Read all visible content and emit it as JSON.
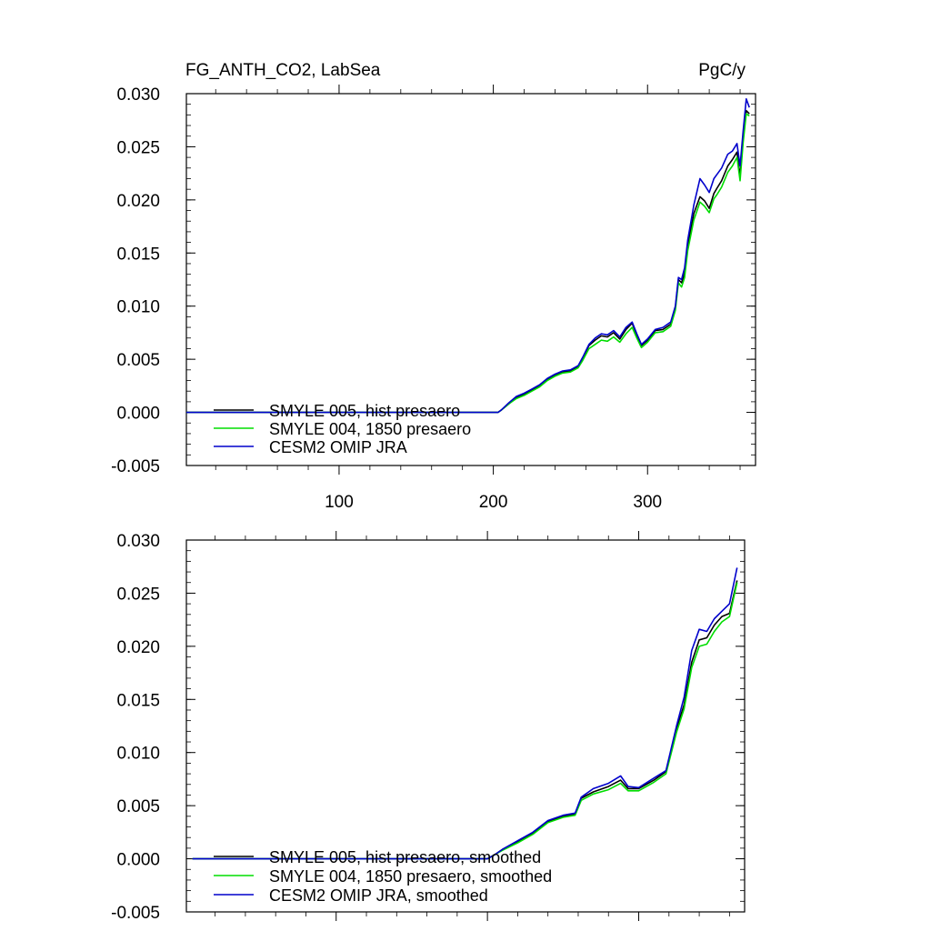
{
  "chart_data": [
    {
      "type": "line",
      "title": "FG_ANTH_CO2, LabSea",
      "units": "PgC/y",
      "xlim": [
        1,
        370
      ],
      "ylim": [
        -0.005,
        0.03
      ],
      "x_ticks": [
        100,
        200,
        300
      ],
      "x_tick_labels": [
        "100",
        "200",
        "300"
      ],
      "y_ticks": [
        -0.005,
        0.0,
        0.005,
        0.01,
        0.015,
        0.02,
        0.025,
        0.03
      ],
      "y_tick_labels": [
        "-0.005",
        "0.000",
        "0.005",
        "0.010",
        "0.015",
        "0.020",
        "0.025",
        "0.030"
      ],
      "legend_location": "bottom-left",
      "series": [
        {
          "name": "SMYLE 005, hist presaero",
          "color": "#000000",
          "x": [
            1,
            203,
            205,
            210,
            215,
            220,
            225,
            230,
            235,
            240,
            245,
            250,
            255,
            258,
            262,
            266,
            270,
            274,
            278,
            282,
            286,
            290,
            293,
            296,
            300,
            305,
            310,
            315,
            318,
            320,
            322,
            324,
            326,
            330,
            334,
            337,
            340,
            343,
            345,
            348,
            352,
            355,
            358,
            360,
            362,
            364,
            366
          ],
          "values": [
            0.0,
            0.0,
            0.0002,
            0.0008,
            0.0014,
            0.0017,
            0.0021,
            0.0025,
            0.0031,
            0.0035,
            0.0038,
            0.0039,
            0.0043,
            0.0051,
            0.0063,
            0.0068,
            0.0072,
            0.0071,
            0.0075,
            0.0069,
            0.0078,
            0.0084,
            0.0073,
            0.0063,
            0.0068,
            0.0077,
            0.0078,
            0.0083,
            0.0098,
            0.0125,
            0.0122,
            0.0131,
            0.0157,
            0.0187,
            0.0203,
            0.0199,
            0.0192,
            0.0206,
            0.0211,
            0.0218,
            0.0232,
            0.0238,
            0.0245,
            0.0222,
            0.0258,
            0.0284,
            0.0281
          ]
        },
        {
          "name": "SMYLE 004, 1850 presaero",
          "color": "#00dd00",
          "x": [
            1,
            203,
            205,
            210,
            215,
            220,
            225,
            230,
            235,
            240,
            245,
            250,
            255,
            258,
            262,
            266,
            270,
            274,
            278,
            282,
            286,
            290,
            293,
            296,
            300,
            305,
            310,
            315,
            318,
            320,
            322,
            324,
            326,
            330,
            334,
            337,
            340,
            343,
            345,
            348,
            352,
            355,
            358,
            360,
            362,
            364,
            366
          ],
          "values": [
            0.0,
            0.0,
            0.0002,
            0.0008,
            0.0013,
            0.0016,
            0.002,
            0.0024,
            0.003,
            0.0034,
            0.0037,
            0.0038,
            0.0042,
            0.0049,
            0.006,
            0.0064,
            0.0068,
            0.0067,
            0.0071,
            0.0066,
            0.0074,
            0.008,
            0.007,
            0.0061,
            0.0066,
            0.0075,
            0.0076,
            0.0081,
            0.0096,
            0.0122,
            0.0118,
            0.0127,
            0.0152,
            0.0181,
            0.0198,
            0.0194,
            0.0188,
            0.0201,
            0.0205,
            0.0212,
            0.0226,
            0.0232,
            0.024,
            0.0218,
            0.0254,
            0.0281,
            0.0279
          ]
        },
        {
          "name": "CESM2 OMIP JRA",
          "color": "#0000cc",
          "x": [
            1,
            203,
            205,
            210,
            215,
            220,
            225,
            230,
            235,
            240,
            245,
            250,
            255,
            258,
            262,
            266,
            270,
            274,
            278,
            282,
            286,
            290,
            293,
            296,
            300,
            305,
            310,
            315,
            318,
            320,
            322,
            324,
            326,
            330,
            334,
            337,
            340,
            343,
            345,
            348,
            352,
            355,
            358,
            360,
            362,
            364,
            366
          ],
          "values": [
            0.0,
            0.0,
            0.0002,
            0.0009,
            0.0015,
            0.0018,
            0.0022,
            0.0026,
            0.0032,
            0.0036,
            0.0039,
            0.004,
            0.0044,
            0.0052,
            0.0064,
            0.007,
            0.0074,
            0.0073,
            0.0077,
            0.0071,
            0.008,
            0.0085,
            0.0074,
            0.0064,
            0.0069,
            0.0078,
            0.008,
            0.0085,
            0.01,
            0.0127,
            0.0125,
            0.0136,
            0.0162,
            0.0195,
            0.022,
            0.0214,
            0.0207,
            0.022,
            0.0224,
            0.023,
            0.0243,
            0.0246,
            0.0253,
            0.0232,
            0.0265,
            0.0295,
            0.0287
          ]
        }
      ]
    },
    {
      "type": "line",
      "title": "",
      "units": "",
      "xlim": [
        1,
        370
      ],
      "ylim": [
        -0.005,
        0.03
      ],
      "x_ticks": [
        100,
        200,
        300
      ],
      "x_tick_labels": [
        "",
        "",
        ""
      ],
      "y_ticks": [
        -0.005,
        0.0,
        0.005,
        0.01,
        0.015,
        0.02,
        0.025,
        0.03
      ],
      "y_tick_labels": [
        "-0.005",
        "0.000",
        "0.005",
        "0.010",
        "0.015",
        "0.020",
        "0.025",
        "0.030"
      ],
      "legend_location": "bottom-left",
      "series": [
        {
          "name": "SMYLE 005, hist presaero, smoothed",
          "color": "#000000",
          "x": [
            5,
            200,
            205,
            210,
            220,
            230,
            240,
            250,
            258,
            262,
            270,
            280,
            288,
            293,
            300,
            310,
            318,
            325,
            330,
            335,
            340,
            345,
            350,
            355,
            360,
            365
          ],
          "values": [
            0.0,
            0.0,
            0.0004,
            0.0009,
            0.0016,
            0.0024,
            0.0035,
            0.004,
            0.0042,
            0.0057,
            0.0063,
            0.0068,
            0.0074,
            0.0066,
            0.0066,
            0.0074,
            0.0082,
            0.0122,
            0.0145,
            0.0185,
            0.0206,
            0.0208,
            0.022,
            0.0228,
            0.0231,
            0.0262
          ]
        },
        {
          "name": "SMYLE 004, 1850 presaero, smoothed",
          "color": "#00dd00",
          "x": [
            5,
            200,
            205,
            210,
            220,
            230,
            240,
            250,
            258,
            262,
            270,
            280,
            288,
            293,
            300,
            310,
            318,
            325,
            330,
            335,
            340,
            345,
            350,
            355,
            360,
            365
          ],
          "values": [
            0.0,
            0.0,
            0.0004,
            0.0008,
            0.0015,
            0.0023,
            0.0034,
            0.0039,
            0.0041,
            0.0055,
            0.0061,
            0.0065,
            0.0071,
            0.0064,
            0.0064,
            0.0072,
            0.008,
            0.0119,
            0.0141,
            0.018,
            0.02,
            0.0202,
            0.0214,
            0.0223,
            0.0228,
            0.026
          ]
        },
        {
          "name": "CESM2 OMIP JRA, smoothed",
          "color": "#0000cc",
          "x": [
            5,
            200,
            205,
            210,
            220,
            230,
            240,
            250,
            258,
            262,
            270,
            280,
            288,
            293,
            300,
            310,
            318,
            325,
            330,
            335,
            340,
            345,
            350,
            355,
            360,
            365
          ],
          "values": [
            0.0,
            0.0,
            0.0004,
            0.0009,
            0.0017,
            0.0025,
            0.0036,
            0.0041,
            0.0043,
            0.0058,
            0.0066,
            0.0071,
            0.0078,
            0.0068,
            0.0067,
            0.0076,
            0.0083,
            0.0125,
            0.0152,
            0.0196,
            0.0216,
            0.0214,
            0.0226,
            0.0233,
            0.024,
            0.0274
          ]
        }
      ]
    }
  ]
}
